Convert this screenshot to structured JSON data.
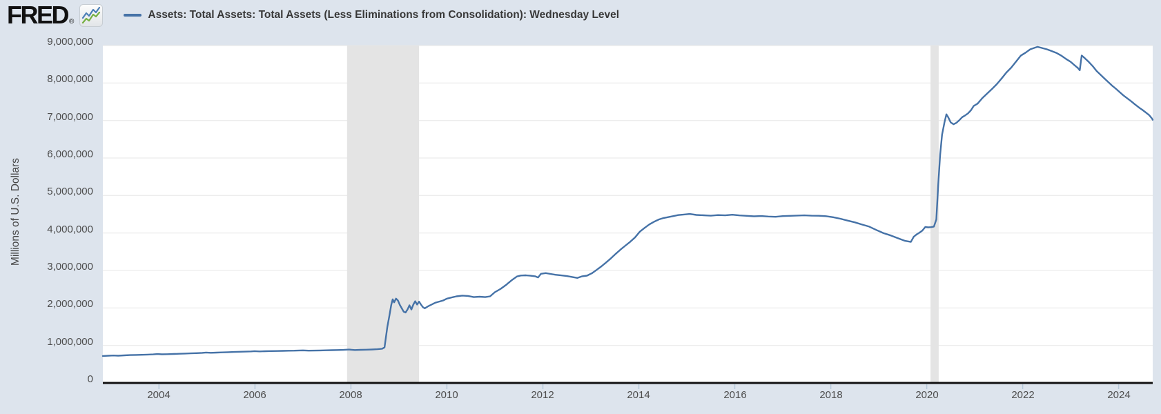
{
  "page": {
    "colors": {
      "background": "#dde4ed"
    }
  },
  "header": {
    "logo_text": "FRED",
    "logo_registered": "®",
    "logo_icon": "fred-sparkline-icon",
    "legend": {
      "marker_color": "#4572a7",
      "label": "Assets: Total Assets: Total Assets (Less Eliminations from Consolidation): Wednesday Level"
    }
  },
  "chart_data": {
    "type": "line",
    "title": "Assets: Total Assets: Total Assets (Less Eliminations from Consolidation): Wednesday Level",
    "xlabel": "",
    "ylabel": "Millions of U.S. Dollars",
    "x_range": [
      2002.83,
      2024.71
    ],
    "ylim": [
      0,
      9000000
    ],
    "grid": "horizontal",
    "legend_position": "top-left",
    "y_ticks": [
      {
        "value": 0,
        "label": "0"
      },
      {
        "value": 1000000,
        "label": "1,000,000"
      },
      {
        "value": 2000000,
        "label": "2,000,000"
      },
      {
        "value": 3000000,
        "label": "3,000,000"
      },
      {
        "value": 4000000,
        "label": "4,000,000"
      },
      {
        "value": 5000000,
        "label": "5,000,000"
      },
      {
        "value": 6000000,
        "label": "6,000,000"
      },
      {
        "value": 7000000,
        "label": "7,000,000"
      },
      {
        "value": 8000000,
        "label": "8,000,000"
      },
      {
        "value": 9000000,
        "label": "9,000,000"
      }
    ],
    "x_ticks": [
      {
        "value": 2004,
        "label": "2004"
      },
      {
        "value": 2006,
        "label": "2006"
      },
      {
        "value": 2008,
        "label": "2008"
      },
      {
        "value": 2010,
        "label": "2010"
      },
      {
        "value": 2012,
        "label": "2012"
      },
      {
        "value": 2014,
        "label": "2014"
      },
      {
        "value": 2016,
        "label": "2016"
      },
      {
        "value": 2018,
        "label": "2018"
      },
      {
        "value": 2020,
        "label": "2020"
      },
      {
        "value": 2022,
        "label": "2022"
      },
      {
        "value": 2024,
        "label": "2024"
      }
    ],
    "recession_bands": [
      {
        "start_year": 2007.92,
        "end_year": 2009.42
      },
      {
        "start_year": 2020.08,
        "end_year": 2020.25
      }
    ],
    "colors": {
      "line": "#4572a7",
      "plot_bg": "#ffffff",
      "grid": "#e7e7e7",
      "band": "#e4e4e4",
      "axis": "#111111",
      "tick": "#b7c9da",
      "label_text": "#4d4d4d"
    },
    "series": [
      {
        "name": "Assets: Total Assets: Total Assets (Less Eliminations from Consolidation): Wednesday Level",
        "points": [
          [
            2002.83,
            719000
          ],
          [
            2002.95,
            727000
          ],
          [
            2003.05,
            733000
          ],
          [
            2003.15,
            727000
          ],
          [
            2003.28,
            737000
          ],
          [
            2003.4,
            743000
          ],
          [
            2003.52,
            748000
          ],
          [
            2003.64,
            751000
          ],
          [
            2003.76,
            757000
          ],
          [
            2003.88,
            762000
          ],
          [
            2003.97,
            771000
          ],
          [
            2004.06,
            763000
          ],
          [
            2004.18,
            768000
          ],
          [
            2004.3,
            773000
          ],
          [
            2004.42,
            779000
          ],
          [
            2004.54,
            784000
          ],
          [
            2004.66,
            790000
          ],
          [
            2004.78,
            796000
          ],
          [
            2004.9,
            803000
          ],
          [
            2004.98,
            811000
          ],
          [
            2005.08,
            804000
          ],
          [
            2005.2,
            809000
          ],
          [
            2005.32,
            815000
          ],
          [
            2005.44,
            820000
          ],
          [
            2005.56,
            826000
          ],
          [
            2005.68,
            831000
          ],
          [
            2005.8,
            836000
          ],
          [
            2005.92,
            842000
          ],
          [
            2005.99,
            848000
          ],
          [
            2006.1,
            841000
          ],
          [
            2006.22,
            846000
          ],
          [
            2006.34,
            850000
          ],
          [
            2006.46,
            853000
          ],
          [
            2006.58,
            856000
          ],
          [
            2006.7,
            859000
          ],
          [
            2006.82,
            862000
          ],
          [
            2006.94,
            866000
          ],
          [
            2007.0,
            869000
          ],
          [
            2007.12,
            861000
          ],
          [
            2007.24,
            864000
          ],
          [
            2007.36,
            867000
          ],
          [
            2007.48,
            871000
          ],
          [
            2007.6,
            874000
          ],
          [
            2007.72,
            877000
          ],
          [
            2007.84,
            881000
          ],
          [
            2007.96,
            890000
          ],
          [
            2008.08,
            878000
          ],
          [
            2008.2,
            883000
          ],
          [
            2008.32,
            888000
          ],
          [
            2008.44,
            893000
          ],
          [
            2008.55,
            900000
          ],
          [
            2008.65,
            912000
          ],
          [
            2008.7,
            950000
          ],
          [
            2008.73,
            1220000
          ],
          [
            2008.76,
            1500000
          ],
          [
            2008.8,
            1780000
          ],
          [
            2008.84,
            2080000
          ],
          [
            2008.87,
            2230000
          ],
          [
            2008.9,
            2150000
          ],
          [
            2008.94,
            2250000
          ],
          [
            2008.98,
            2200000
          ],
          [
            2009.02,
            2080000
          ],
          [
            2009.06,
            1990000
          ],
          [
            2009.1,
            1900000
          ],
          [
            2009.14,
            1880000
          ],
          [
            2009.18,
            1960000
          ],
          [
            2009.22,
            2070000
          ],
          [
            2009.26,
            1960000
          ],
          [
            2009.3,
            2090000
          ],
          [
            2009.34,
            2180000
          ],
          [
            2009.38,
            2090000
          ],
          [
            2009.42,
            2170000
          ],
          [
            2009.46,
            2090000
          ],
          [
            2009.5,
            2020000
          ],
          [
            2009.54,
            1990000
          ],
          [
            2009.6,
            2040000
          ],
          [
            2009.68,
            2090000
          ],
          [
            2009.76,
            2140000
          ],
          [
            2009.84,
            2170000
          ],
          [
            2009.92,
            2200000
          ],
          [
            2010.0,
            2250000
          ],
          [
            2010.1,
            2280000
          ],
          [
            2010.2,
            2310000
          ],
          [
            2010.32,
            2330000
          ],
          [
            2010.44,
            2320000
          ],
          [
            2010.56,
            2290000
          ],
          [
            2010.68,
            2300000
          ],
          [
            2010.8,
            2290000
          ],
          [
            2010.9,
            2310000
          ],
          [
            2011.0,
            2420000
          ],
          [
            2011.12,
            2510000
          ],
          [
            2011.24,
            2620000
          ],
          [
            2011.36,
            2750000
          ],
          [
            2011.46,
            2840000
          ],
          [
            2011.54,
            2865000
          ],
          [
            2011.64,
            2872000
          ],
          [
            2011.74,
            2860000
          ],
          [
            2011.84,
            2845000
          ],
          [
            2011.9,
            2812000
          ],
          [
            2011.96,
            2912000
          ],
          [
            2012.06,
            2930000
          ],
          [
            2012.16,
            2908000
          ],
          [
            2012.26,
            2885000
          ],
          [
            2012.38,
            2870000
          ],
          [
            2012.5,
            2850000
          ],
          [
            2012.62,
            2824000
          ],
          [
            2012.72,
            2802000
          ],
          [
            2012.82,
            2846000
          ],
          [
            2012.92,
            2862000
          ],
          [
            2013.02,
            2925000
          ],
          [
            2013.12,
            3015000
          ],
          [
            2013.22,
            3110000
          ],
          [
            2013.32,
            3215000
          ],
          [
            2013.42,
            3325000
          ],
          [
            2013.52,
            3445000
          ],
          [
            2013.62,
            3560000
          ],
          [
            2013.72,
            3662000
          ],
          [
            2013.82,
            3765000
          ],
          [
            2013.92,
            3880000
          ],
          [
            2014.02,
            4035000
          ],
          [
            2014.12,
            4135000
          ],
          [
            2014.22,
            4230000
          ],
          [
            2014.32,
            4302000
          ],
          [
            2014.42,
            4362000
          ],
          [
            2014.52,
            4400000
          ],
          [
            2014.62,
            4425000
          ],
          [
            2014.72,
            4450000
          ],
          [
            2014.82,
            4478000
          ],
          [
            2014.94,
            4492000
          ],
          [
            2015.06,
            4508000
          ],
          [
            2015.2,
            4482000
          ],
          [
            2015.35,
            4472000
          ],
          [
            2015.5,
            4462000
          ],
          [
            2015.65,
            4478000
          ],
          [
            2015.8,
            4470000
          ],
          [
            2015.95,
            4488000
          ],
          [
            2016.1,
            4468000
          ],
          [
            2016.25,
            4458000
          ],
          [
            2016.4,
            4445000
          ],
          [
            2016.55,
            4452000
          ],
          [
            2016.7,
            4440000
          ],
          [
            2016.85,
            4432000
          ],
          [
            2017.0,
            4450000
          ],
          [
            2017.15,
            4458000
          ],
          [
            2017.3,
            4465000
          ],
          [
            2017.45,
            4470000
          ],
          [
            2017.6,
            4462000
          ],
          [
            2017.75,
            4460000
          ],
          [
            2017.9,
            4448000
          ],
          [
            2018.05,
            4420000
          ],
          [
            2018.2,
            4380000
          ],
          [
            2018.35,
            4330000
          ],
          [
            2018.5,
            4285000
          ],
          [
            2018.65,
            4225000
          ],
          [
            2018.8,
            4170000
          ],
          [
            2018.95,
            4080000
          ],
          [
            2019.1,
            3995000
          ],
          [
            2019.25,
            3935000
          ],
          [
            2019.4,
            3860000
          ],
          [
            2019.55,
            3790000
          ],
          [
            2019.67,
            3762000
          ],
          [
            2019.73,
            3900000
          ],
          [
            2019.79,
            3962000
          ],
          [
            2019.85,
            4010000
          ],
          [
            2019.91,
            4066000
          ],
          [
            2019.97,
            4160000
          ],
          [
            2020.03,
            4150000
          ],
          [
            2020.09,
            4156000
          ],
          [
            2020.15,
            4170000
          ],
          [
            2020.2,
            4360000
          ],
          [
            2020.24,
            5300000
          ],
          [
            2020.28,
            6080000
          ],
          [
            2020.32,
            6620000
          ],
          [
            2020.37,
            6950000
          ],
          [
            2020.41,
            7165000
          ],
          [
            2020.45,
            7080000
          ],
          [
            2020.5,
            6950000
          ],
          [
            2020.56,
            6900000
          ],
          [
            2020.62,
            6940000
          ],
          [
            2020.68,
            7010000
          ],
          [
            2020.74,
            7090000
          ],
          [
            2020.8,
            7135000
          ],
          [
            2020.86,
            7190000
          ],
          [
            2020.92,
            7270000
          ],
          [
            2020.98,
            7390000
          ],
          [
            2021.06,
            7450000
          ],
          [
            2021.16,
            7600000
          ],
          [
            2021.26,
            7720000
          ],
          [
            2021.36,
            7840000
          ],
          [
            2021.46,
            7970000
          ],
          [
            2021.56,
            8120000
          ],
          [
            2021.66,
            8280000
          ],
          [
            2021.76,
            8410000
          ],
          [
            2021.86,
            8570000
          ],
          [
            2021.96,
            8730000
          ],
          [
            2022.06,
            8810000
          ],
          [
            2022.16,
            8900000
          ],
          [
            2022.26,
            8945000
          ],
          [
            2022.31,
            8965000
          ],
          [
            2022.4,
            8935000
          ],
          [
            2022.5,
            8900000
          ],
          [
            2022.6,
            8855000
          ],
          [
            2022.7,
            8805000
          ],
          [
            2022.8,
            8735000
          ],
          [
            2022.9,
            8645000
          ],
          [
            2023.0,
            8565000
          ],
          [
            2023.08,
            8475000
          ],
          [
            2023.15,
            8400000
          ],
          [
            2023.19,
            8342000
          ],
          [
            2023.23,
            8735000
          ],
          [
            2023.3,
            8655000
          ],
          [
            2023.38,
            8560000
          ],
          [
            2023.46,
            8450000
          ],
          [
            2023.54,
            8320000
          ],
          [
            2023.62,
            8225000
          ],
          [
            2023.7,
            8125000
          ],
          [
            2023.78,
            8030000
          ],
          [
            2023.86,
            7935000
          ],
          [
            2023.94,
            7850000
          ],
          [
            2024.02,
            7760000
          ],
          [
            2024.1,
            7670000
          ],
          [
            2024.18,
            7590000
          ],
          [
            2024.26,
            7515000
          ],
          [
            2024.34,
            7430000
          ],
          [
            2024.42,
            7350000
          ],
          [
            2024.5,
            7280000
          ],
          [
            2024.58,
            7200000
          ],
          [
            2024.64,
            7140000
          ],
          [
            2024.69,
            7060000
          ],
          [
            2024.71,
            7020000
          ]
        ]
      }
    ]
  }
}
